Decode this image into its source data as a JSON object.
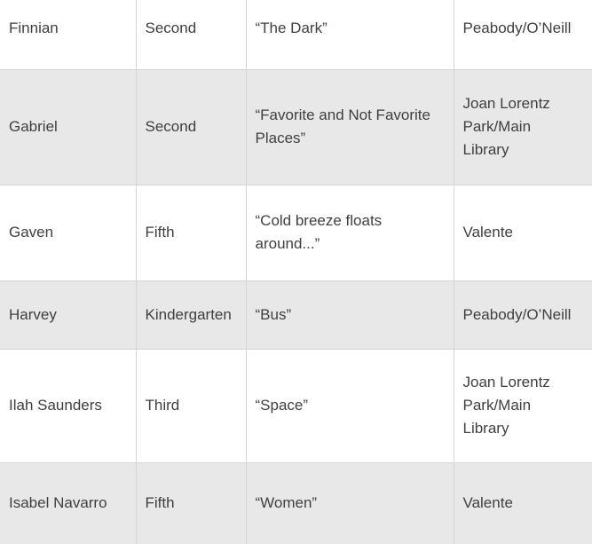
{
  "colors": {
    "alt_row": "#e8e8e8",
    "border": "#d5d5d5",
    "text": "#3f3f3f",
    "bg": "#ffffff"
  },
  "rows": [
    {
      "name": "Finnian",
      "grade": "Second",
      "title": "“The Dark”",
      "location": "Peabody/O’Neill"
    },
    {
      "name": "Gabriel",
      "grade": "Second",
      "title": "“Favorite and Not Favorite Places”",
      "location": "Joan Lorentz Park/Main Library"
    },
    {
      "name": "Gaven",
      "grade": "Fifth",
      "title": "“Cold breeze floats around...”",
      "location": "Valente"
    },
    {
      "name": "Harvey",
      "grade": "Kindergarten",
      "title": "“Bus”",
      "location": "Peabody/O’Neill"
    },
    {
      "name": "Ilah Saunders",
      "grade": "Third",
      "title": "“Space”",
      "location": "Joan Lorentz Park/Main Library"
    },
    {
      "name": "Isabel Navarro",
      "grade": "Fifth",
      "title": "“Women”",
      "location": "Valente"
    }
  ]
}
